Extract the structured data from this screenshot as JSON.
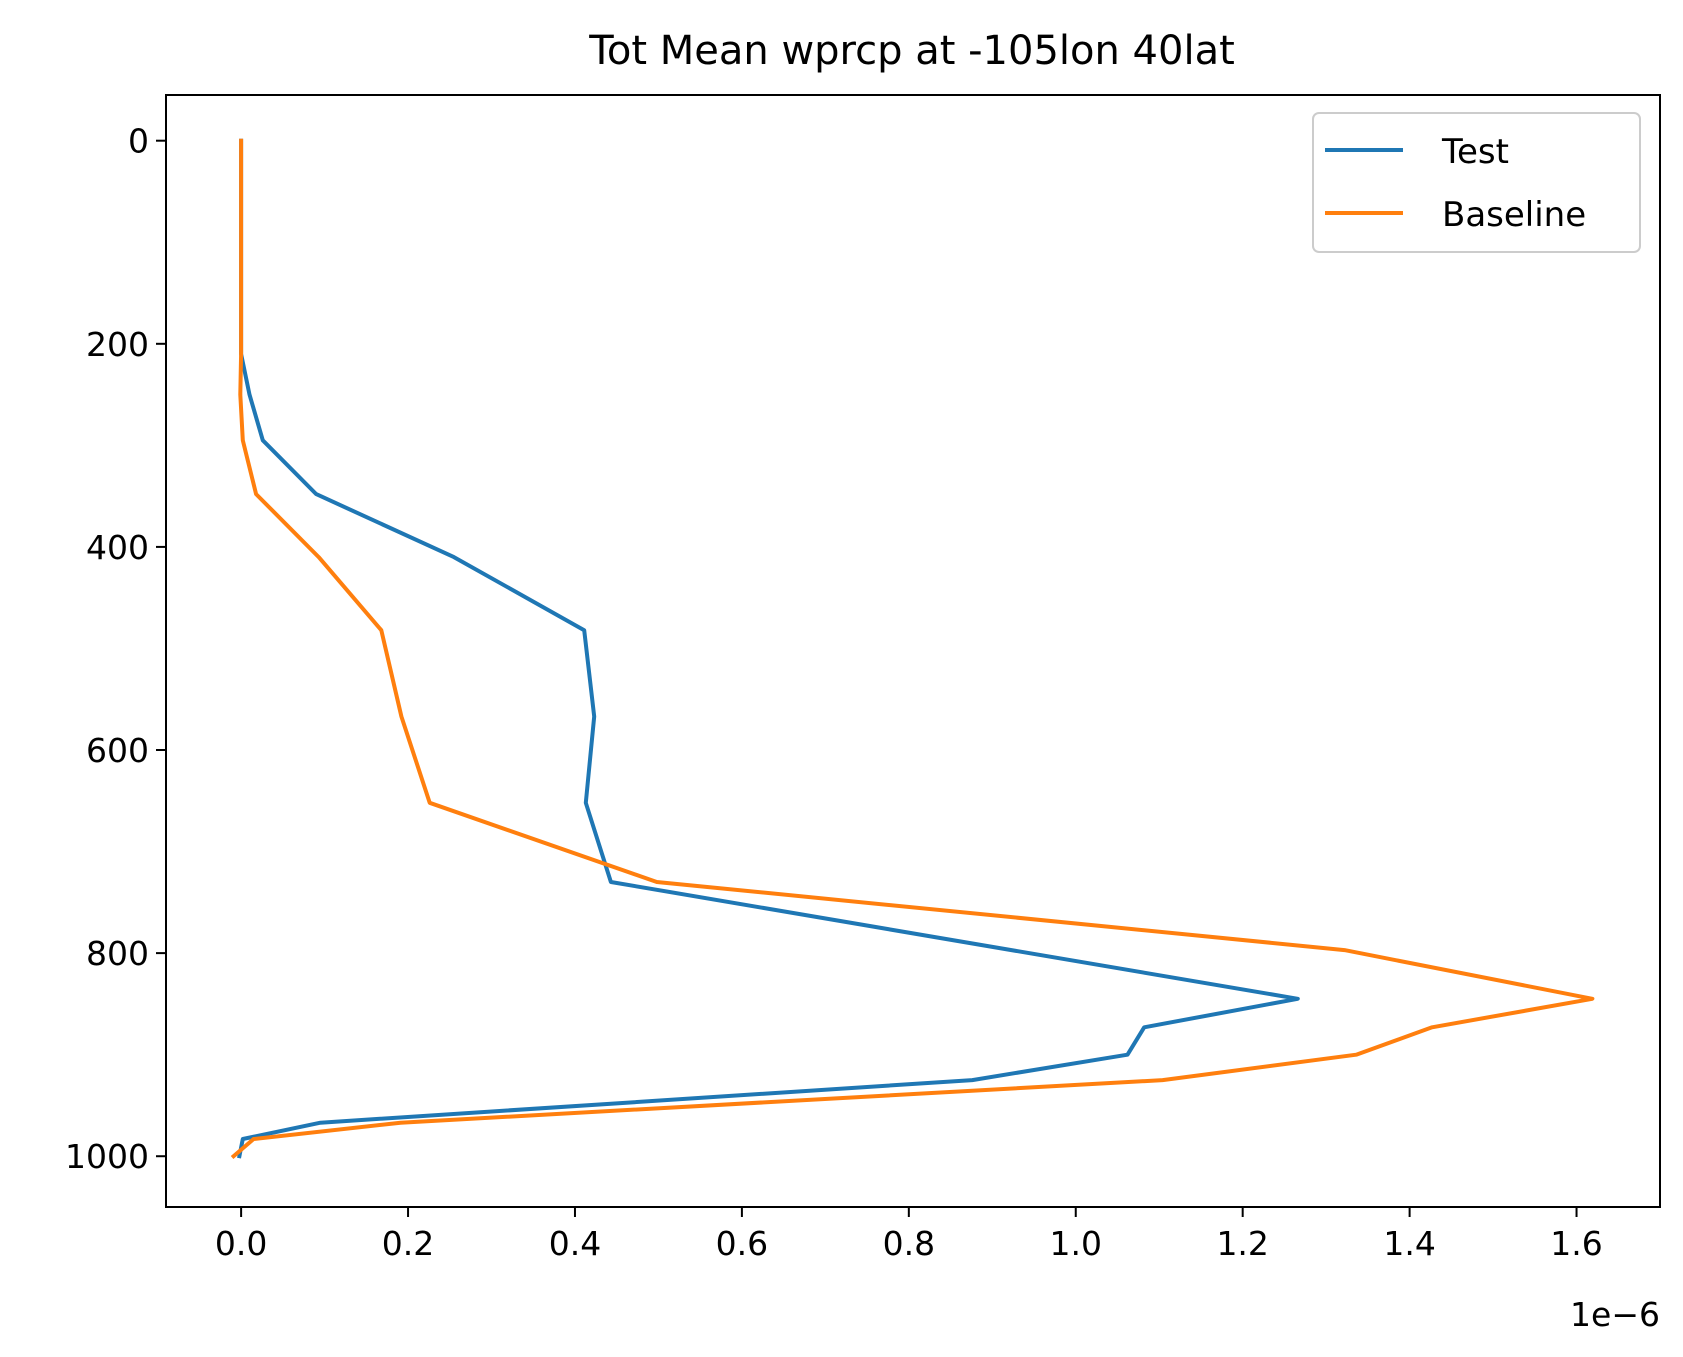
{
  "chart_data": {
    "type": "line",
    "title": "Tot Mean wprcp at -105lon 40lat",
    "xlabel": "",
    "ylabel": "",
    "x_offset_label": "1e−6",
    "xlim": [
      -0.09,
      1.7
    ],
    "ylim": [
      1050,
      -45
    ],
    "y_inverted": true,
    "x_ticks": [
      0.0,
      0.2,
      0.4,
      0.6,
      0.8,
      1.0,
      1.2,
      1.4,
      1.6
    ],
    "x_tick_labels": [
      "0.0",
      "0.2",
      "0.4",
      "0.6",
      "0.8",
      "1.0",
      "1.2",
      "1.4",
      "1.6"
    ],
    "y_ticks": [
      0,
      200,
      400,
      600,
      800,
      1000
    ],
    "y_tick_labels": [
      "0",
      "200",
      "400",
      "600",
      "800",
      "1000"
    ],
    "grid": false,
    "legend_position": "top-right",
    "series": [
      {
        "name": "Test",
        "color": "#1f77b4",
        "points": [
          [
            0.0,
            0
          ],
          [
            0.0,
            50
          ],
          [
            0.0,
            100
          ],
          [
            0.0,
            150
          ],
          [
            0.0,
            210
          ],
          [
            0.01,
            250
          ],
          [
            0.026,
            295
          ],
          [
            0.09,
            348
          ],
          [
            0.255,
            410
          ],
          [
            0.411,
            482
          ],
          [
            0.423,
            567
          ],
          [
            0.413,
            652
          ],
          [
            0.443,
            730
          ],
          [
            1.266,
            845
          ],
          [
            1.082,
            873
          ],
          [
            1.062,
            900
          ],
          [
            0.876,
            925
          ],
          [
            0.095,
            967
          ],
          [
            0.002,
            983
          ],
          [
            -0.002,
            1000
          ]
        ]
      },
      {
        "name": "Baseline",
        "color": "#ff7f0e",
        "points": [
          [
            0.0,
            0
          ],
          [
            0.0,
            50
          ],
          [
            0.0,
            100
          ],
          [
            0.0,
            150
          ],
          [
            0.0,
            210
          ],
          [
            -0.001,
            250
          ],
          [
            0.002,
            295
          ],
          [
            0.018,
            348
          ],
          [
            0.093,
            410
          ],
          [
            0.168,
            482
          ],
          [
            0.192,
            567
          ],
          [
            0.226,
            652
          ],
          [
            0.498,
            730
          ],
          [
            1.322,
            797
          ],
          [
            1.619,
            845
          ],
          [
            1.427,
            873
          ],
          [
            1.336,
            900
          ],
          [
            1.104,
            925
          ],
          [
            0.191,
            967
          ],
          [
            0.015,
            983
          ],
          [
            -0.009,
            1000
          ]
        ]
      }
    ]
  }
}
